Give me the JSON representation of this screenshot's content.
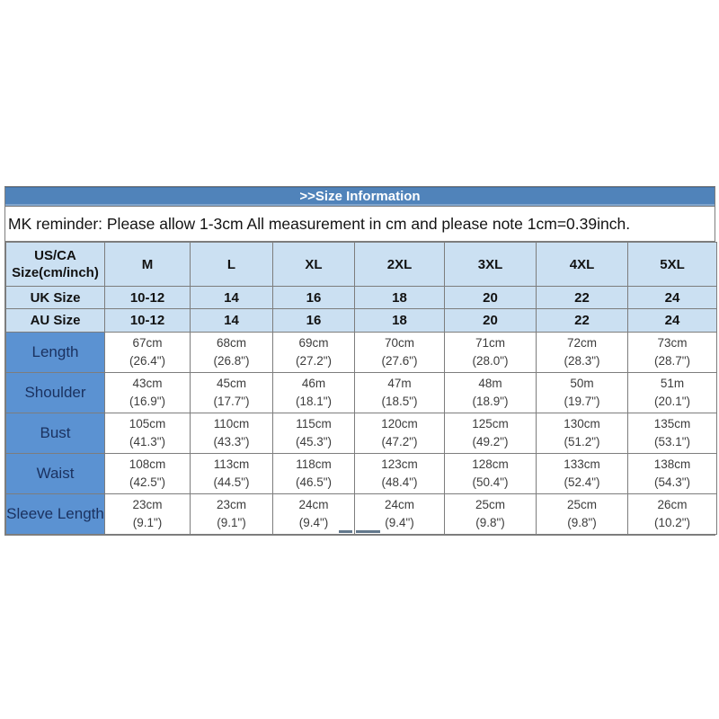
{
  "title": ">>Size Information",
  "reminder": "MK reminder: Please allow 1-3cm All measurement in cm and please note 1cm=0.39inch.",
  "colors": {
    "title_bar_background": "#5083ba",
    "title_bar_text": "#ffffff",
    "header_cell_background": "#cbe0f2",
    "row_label_background": "#5b92d2",
    "row_label_text": "#1b3260",
    "grid_border": "#7d7d7d",
    "data_cell_text": "#3c3c3c"
  },
  "chart_data": {
    "type": "table",
    "title": ">>Size Information",
    "note": "MK reminder: Please allow 1-3cm All measurement in cm and please note 1cm=0.39inch.",
    "columns": [
      "US/CA Size(cm/inch)",
      "M",
      "L",
      "XL",
      "2XL",
      "3XL",
      "4XL",
      "5XL"
    ],
    "size_rows": [
      {
        "label": "UK Size",
        "values": [
          "10-12",
          "14",
          "16",
          "18",
          "20",
          "22",
          "24"
        ]
      },
      {
        "label": "AU Size",
        "values": [
          "10-12",
          "14",
          "16",
          "18",
          "20",
          "22",
          "24"
        ]
      }
    ],
    "measurement_rows": [
      {
        "label": "Length",
        "values": [
          {
            "cm": "67cm",
            "inch": "(26.4\")"
          },
          {
            "cm": "68cm",
            "inch": "(26.8\")"
          },
          {
            "cm": "69cm",
            "inch": "(27.2\")"
          },
          {
            "cm": "70cm",
            "inch": "(27.6\")"
          },
          {
            "cm": "71cm",
            "inch": "(28.0\")"
          },
          {
            "cm": "72cm",
            "inch": "(28.3\")"
          },
          {
            "cm": "73cm",
            "inch": "(28.7\")"
          }
        ]
      },
      {
        "label": "Shoulder",
        "values": [
          {
            "cm": "43cm",
            "inch": "(16.9\")"
          },
          {
            "cm": "45cm",
            "inch": "(17.7\")"
          },
          {
            "cm": "46m",
            "inch": "(18.1\")"
          },
          {
            "cm": "47m",
            "inch": "(18.5\")"
          },
          {
            "cm": "48m",
            "inch": "(18.9\")"
          },
          {
            "cm": "50m",
            "inch": "(19.7\")"
          },
          {
            "cm": "51m",
            "inch": "(20.1\")"
          }
        ]
      },
      {
        "label": "Bust",
        "values": [
          {
            "cm": "105cm",
            "inch": "(41.3\")"
          },
          {
            "cm": "110cm",
            "inch": "(43.3\")"
          },
          {
            "cm": "115cm",
            "inch": "(45.3\")"
          },
          {
            "cm": "120cm",
            "inch": "(47.2\")"
          },
          {
            "cm": "125cm",
            "inch": "(49.2\")"
          },
          {
            "cm": "130cm",
            "inch": "(51.2\")"
          },
          {
            "cm": "135cm",
            "inch": "(53.1\")"
          }
        ]
      },
      {
        "label": "Waist",
        "values": [
          {
            "cm": "108cm",
            "inch": "(42.5\")"
          },
          {
            "cm": "113cm",
            "inch": "(44.5\")"
          },
          {
            "cm": "118cm",
            "inch": "(46.5\")"
          },
          {
            "cm": "123cm",
            "inch": "(48.4\")"
          },
          {
            "cm": "128cm",
            "inch": "(50.4\")"
          },
          {
            "cm": "133cm",
            "inch": "(52.4\")"
          },
          {
            "cm": "138cm",
            "inch": "(54.3\")"
          }
        ]
      },
      {
        "label": "Sleeve Length",
        "values": [
          {
            "cm": "23cm",
            "inch": "(9.1\")"
          },
          {
            "cm": "23cm",
            "inch": "(9.1\")"
          },
          {
            "cm": "24cm",
            "inch": "(9.4\")"
          },
          {
            "cm": "24cm",
            "inch": "(9.4\")"
          },
          {
            "cm": "25cm",
            "inch": "(9.8\")"
          },
          {
            "cm": "25cm",
            "inch": "(9.8\")"
          },
          {
            "cm": "26cm",
            "inch": "(10.2\")"
          }
        ]
      }
    ]
  }
}
